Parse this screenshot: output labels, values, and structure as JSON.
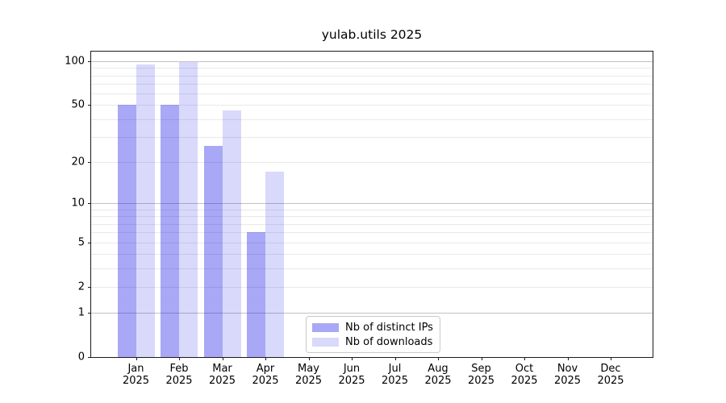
{
  "chart_data": {
    "type": "bar",
    "title": "yulab.utils 2025",
    "x_tick_line2": "2025",
    "categories": [
      "Jan",
      "Feb",
      "Mar",
      "Apr",
      "May",
      "Jun",
      "Jul",
      "Aug",
      "Sep",
      "Oct",
      "Nov",
      "Dec"
    ],
    "series": [
      {
        "name": "Nb of distinct IPs",
        "color": "rgba(0,0,230,0.34)",
        "values": [
          50,
          50,
          26,
          6,
          0,
          0,
          0,
          0,
          0,
          0,
          0,
          0
        ]
      },
      {
        "name": "Nb of downloads",
        "color": "rgba(0,0,230,0.15)",
        "values": [
          95,
          99,
          46,
          17,
          0,
          0,
          0,
          0,
          0,
          0,
          0,
          0
        ]
      }
    ],
    "y_axis": {
      "scale": "log10(value+1)",
      "lim": [
        0,
        118
      ],
      "tick_labels": [
        100,
        50,
        20,
        10,
        5,
        2,
        1,
        0
      ],
      "major_gridlines": [
        1,
        10,
        100
      ],
      "minor_gridlines": [
        2,
        3,
        4,
        5,
        6,
        7,
        8,
        9,
        20,
        30,
        40,
        50,
        60,
        70,
        80,
        90
      ]
    },
    "legend": {
      "position": "lower-center",
      "entries": [
        {
          "label": "Nb of distinct IPs",
          "color": "rgba(0,0,230,0.34)"
        },
        {
          "label": "Nb of downloads",
          "color": "rgba(0,0,230,0.15)"
        }
      ]
    }
  },
  "style": {
    "background": "#ffffff",
    "spine_color": "#1a1a1a",
    "major_grid_color": "#c2c2c2",
    "minor_grid_color": "#e9e9e9",
    "text_color": "#000000"
  }
}
